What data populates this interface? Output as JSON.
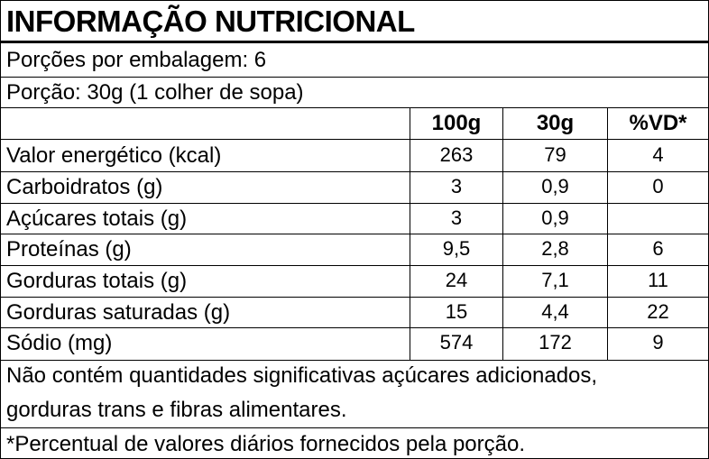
{
  "title": "INFORMAÇÃO NUTRICIONAL",
  "servings_per_package": "Porções por embalagem: 6",
  "serving_size": "Porção: 30g (1 colher de sopa)",
  "columns": [
    "100g",
    "30g",
    "%VD*"
  ],
  "rows": [
    {
      "label": "Valor energético (kcal)",
      "v100": "263",
      "v30": "79",
      "vd": "4"
    },
    {
      "label": "Carboidratos (g)",
      "v100": "3",
      "v30": "0,9",
      "vd": "0"
    },
    {
      "label": "Açúcares totais (g)",
      "v100": "3",
      "v30": "0,9",
      "vd": ""
    },
    {
      "label": "Proteínas (g)",
      "v100": "9,5",
      "v30": "2,8",
      "vd": "6"
    },
    {
      "label": "Gorduras totais (g)",
      "v100": "24",
      "v30": "7,1",
      "vd": "11"
    },
    {
      "label": "Gorduras saturadas (g)",
      "v100": "15",
      "v30": "4,4",
      "vd": "22"
    },
    {
      "label": "Sódio (mg)",
      "v100": "574",
      "v30": "172",
      "vd": "9"
    }
  ],
  "note_line1": "Não contém quantidades significativas açúcares adicionados,",
  "note_line2": "gorduras trans e fibras alimentares.",
  "footnote": "*Percentual de valores diários fornecidos pela porção."
}
